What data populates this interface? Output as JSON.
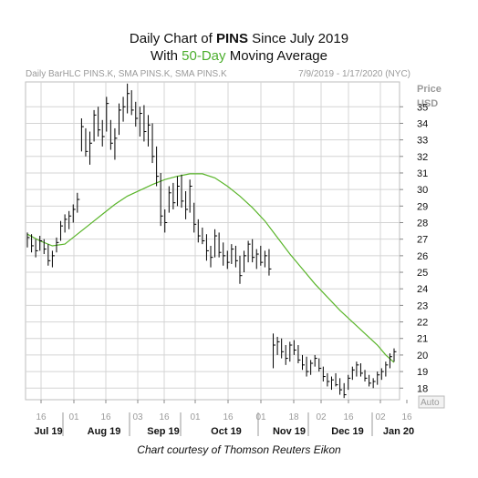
{
  "title": {
    "line1_prefix": "Daily Chart of ",
    "line1_ticker": "PINS",
    "line1_suffix": " Since July 2019",
    "line2_prefix": "With ",
    "line2_highlight": "50-Day",
    "line2_suffix": " Moving Average"
  },
  "header": {
    "left": "Daily BarHLC PINS.K, SMA PINS.K, SMA PINS.K",
    "right": "7/9/2019 - 1/17/2020 (NYC)"
  },
  "footer": "Chart courtesy of Thomson Reuters Eikon",
  "colors": {
    "bars": "#000000",
    "sma": "#5ab52a",
    "grid": "#d4d4d4",
    "highlight": "#4cae2d"
  },
  "chart_data": {
    "type": "bar",
    "style": "HLC bars",
    "y_axis": {
      "label": "Price",
      "unit": "USD",
      "ticks": [
        18,
        19,
        20,
        21,
        22,
        23,
        24,
        25,
        26,
        27,
        28,
        29,
        30,
        31,
        32,
        33,
        34,
        35
      ],
      "ylim": [
        17.3,
        36.5
      ],
      "scale_button": "Auto"
    },
    "x_axis": {
      "day_ticks": [
        "16",
        "01",
        "16",
        "03",
        "16",
        "01",
        "16",
        "01",
        "18",
        "02",
        "16",
        "02",
        "16"
      ],
      "month_labels": [
        "Jul 19",
        "Aug 19",
        "Sep 19",
        "Oct 19",
        "Nov 19",
        "Dec 19",
        "Jan 20"
      ],
      "range": [
        "2019-07-09",
        "2020-01-17"
      ]
    },
    "grid": true,
    "series": [
      {
        "name": "PINS.K",
        "kind": "price",
        "values": [
          [
            26.8,
            27.4,
            26.5,
            27.1
          ],
          [
            27.0,
            27.3,
            26.2,
            26.6
          ],
          [
            26.8,
            27.0,
            25.9,
            26.3
          ],
          [
            26.7,
            27.2,
            26.3,
            26.9
          ],
          [
            26.6,
            27.0,
            26.1,
            26.4
          ],
          [
            26.3,
            26.7,
            25.4,
            25.7
          ],
          [
            25.9,
            26.3,
            25.3,
            26.0
          ],
          [
            26.5,
            27.1,
            26.2,
            26.8
          ],
          [
            27.0,
            28.1,
            26.9,
            27.8
          ],
          [
            27.6,
            28.5,
            27.4,
            28.2
          ],
          [
            28.0,
            28.7,
            27.6,
            28.4
          ],
          [
            28.4,
            29.1,
            28.0,
            28.8
          ],
          [
            28.9,
            29.8,
            28.6,
            29.4
          ],
          [
            33.0,
            34.3,
            32.3,
            33.8
          ],
          [
            33.2,
            33.7,
            32.0,
            32.3
          ],
          [
            32.5,
            33.5,
            31.5,
            32.8
          ],
          [
            33.4,
            34.8,
            32.9,
            34.5
          ],
          [
            34.0,
            35.0,
            33.2,
            33.6
          ],
          [
            33.5,
            34.2,
            32.6,
            33.2
          ],
          [
            33.9,
            35.6,
            33.5,
            35.2
          ],
          [
            33.5,
            34.2,
            32.4,
            32.8
          ],
          [
            32.6,
            33.7,
            31.8,
            33.1
          ],
          [
            33.8,
            35.2,
            33.3,
            34.8
          ],
          [
            34.6,
            35.6,
            34.1,
            35.0
          ],
          [
            35.1,
            36.4,
            34.6,
            35.8
          ],
          [
            35.4,
            36.0,
            34.5,
            34.8
          ],
          [
            34.7,
            35.3,
            33.8,
            34.3
          ],
          [
            34.0,
            35.0,
            33.2,
            34.6
          ],
          [
            34.4,
            35.1,
            32.9,
            33.5
          ],
          [
            33.4,
            34.5,
            32.6,
            33.9
          ],
          [
            33.6,
            34.0,
            31.6,
            32.0
          ],
          [
            31.8,
            32.6,
            30.2,
            30.8
          ],
          [
            30.0,
            31.0,
            27.8,
            28.4
          ],
          [
            28.2,
            28.8,
            27.4,
            28.0
          ],
          [
            29.0,
            30.2,
            28.6,
            29.8
          ],
          [
            29.6,
            30.4,
            28.8,
            29.2
          ],
          [
            29.4,
            30.8,
            29.0,
            30.2
          ],
          [
            30.0,
            30.9,
            28.9,
            29.3
          ],
          [
            29.2,
            29.9,
            28.2,
            28.8
          ],
          [
            29.0,
            30.6,
            28.6,
            30.2
          ],
          [
            28.8,
            29.2,
            27.4,
            27.9
          ],
          [
            27.6,
            28.2,
            26.8,
            27.2
          ],
          [
            27.3,
            27.7,
            26.7,
            26.9
          ],
          [
            26.8,
            27.3,
            25.7,
            26.3
          ],
          [
            26.0,
            26.6,
            25.3,
            25.9
          ],
          [
            26.2,
            27.6,
            25.9,
            27.2
          ],
          [
            26.9,
            27.4,
            25.9,
            26.2
          ],
          [
            26.2,
            26.8,
            25.4,
            26.0
          ],
          [
            25.8,
            26.3,
            25.2,
            25.6
          ],
          [
            25.9,
            26.7,
            25.5,
            26.4
          ],
          [
            26.2,
            26.6,
            25.3,
            25.7
          ],
          [
            25.5,
            26.0,
            24.3,
            24.8
          ],
          [
            25.2,
            26.3,
            25.0,
            26.0
          ],
          [
            26.0,
            26.9,
            25.6,
            26.7
          ],
          [
            26.5,
            27.0,
            25.6,
            25.9
          ],
          [
            25.8,
            26.4,
            25.2,
            26.1
          ],
          [
            26.0,
            26.6,
            25.4,
            25.6
          ],
          [
            25.7,
            26.3,
            25.3,
            26.0
          ],
          [
            25.9,
            26.4,
            24.8,
            25.2
          ],
          [
            21.0,
            21.3,
            19.2,
            20.6
          ],
          [
            20.4,
            21.1,
            20.0,
            20.8
          ],
          [
            20.6,
            21.0,
            19.8,
            20.2
          ],
          [
            20.1,
            20.6,
            19.4,
            19.8
          ],
          [
            20.0,
            20.8,
            19.6,
            20.6
          ],
          [
            20.4,
            20.9,
            20.0,
            20.3
          ],
          [
            20.2,
            20.6,
            19.5,
            19.7
          ],
          [
            19.6,
            20.0,
            19.1,
            19.4
          ],
          [
            19.5,
            19.9,
            18.7,
            19.0
          ],
          [
            19.1,
            19.7,
            18.8,
            19.5
          ],
          [
            19.6,
            20.0,
            19.3,
            19.8
          ],
          [
            19.5,
            19.8,
            19.0,
            19.2
          ],
          [
            19.0,
            19.3,
            18.4,
            18.7
          ],
          [
            18.6,
            18.9,
            18.1,
            18.4
          ],
          [
            18.3,
            18.7,
            17.9,
            18.5
          ],
          [
            18.5,
            18.9,
            18.1,
            18.2
          ],
          [
            18.2,
            18.6,
            17.6,
            17.9
          ],
          [
            18.0,
            18.3,
            17.4,
            17.6
          ],
          [
            18.1,
            18.8,
            17.9,
            18.6
          ],
          [
            18.7,
            19.3,
            18.5,
            19.1
          ],
          [
            19.0,
            19.6,
            18.7,
            19.4
          ],
          [
            19.2,
            19.5,
            18.7,
            18.9
          ],
          [
            18.8,
            19.1,
            18.4,
            18.6
          ],
          [
            18.5,
            18.8,
            18.1,
            18.3
          ],
          [
            18.3,
            18.6,
            18.0,
            18.4
          ],
          [
            18.4,
            19.0,
            18.2,
            18.8
          ],
          [
            18.7,
            19.2,
            18.5,
            19.0
          ],
          [
            18.9,
            19.6,
            18.7,
            19.4
          ],
          [
            19.5,
            20.1,
            19.2,
            19.9
          ],
          [
            20.0,
            20.4,
            19.6,
            20.2
          ]
        ]
      },
      {
        "name": "50-Day Moving Average",
        "kind": "sma",
        "values": [
          [
            0,
            27.3
          ],
          [
            3,
            26.9
          ],
          [
            6,
            26.6
          ],
          [
            9,
            26.7
          ],
          [
            12,
            27.3
          ],
          [
            15,
            27.9
          ],
          [
            18,
            28.5
          ],
          [
            21,
            29.1
          ],
          [
            24,
            29.6
          ],
          [
            27,
            29.95
          ],
          [
            30,
            30.3
          ],
          [
            33,
            30.6
          ],
          [
            36,
            30.8
          ],
          [
            39,
            30.95
          ],
          [
            42,
            30.95
          ],
          [
            45,
            30.7
          ],
          [
            48,
            30.2
          ],
          [
            51,
            29.6
          ],
          [
            54,
            28.9
          ],
          [
            57,
            28.1
          ],
          [
            60,
            27.1
          ],
          [
            63,
            26.1
          ],
          [
            66,
            25.2
          ],
          [
            69,
            24.3
          ],
          [
            72,
            23.5
          ],
          [
            75,
            22.7
          ],
          [
            78,
            22.0
          ],
          [
            81,
            21.3
          ],
          [
            84,
            20.6
          ],
          [
            86,
            20.0
          ],
          [
            88,
            19.55
          ]
        ]
      }
    ]
  }
}
